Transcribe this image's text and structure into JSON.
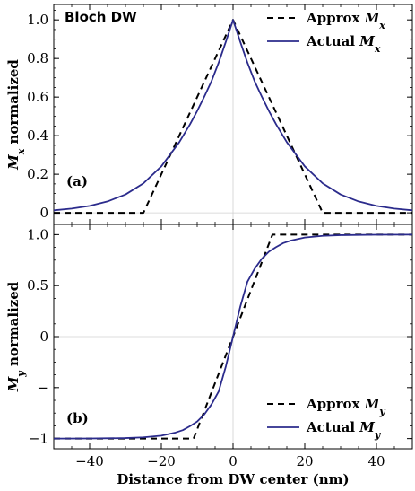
{
  "chart_data": [
    {
      "type": "line",
      "title": "Bloch DW",
      "panel_label": "(a)",
      "ylabel": "Mx normalized",
      "xlabel": "",
      "xlim": [
        -50,
        50
      ],
      "ylim": [
        -0.06,
        1.08
      ],
      "xticks": [
        -40,
        -20,
        0,
        20,
        40
      ],
      "yticks": [
        0,
        0.2,
        0.4,
        0.6,
        0.8,
        1.0
      ],
      "ytick_labels": [
        "0",
        "0.2",
        "0.4",
        "0.6",
        "0.8",
        "1.0"
      ],
      "show_x_tick_labels": false,
      "legend": {
        "placement": "top-right"
      },
      "series": [
        {
          "name": "Approx Mx",
          "style": "dashed",
          "color": "#000000",
          "x": [
            -50,
            -25,
            0,
            25,
            50
          ],
          "y": [
            0,
            0,
            1,
            0,
            0
          ]
        },
        {
          "name": "Actual Mx",
          "style": "solid",
          "color": "#2b2b8c",
          "x": [
            -50,
            -45,
            -40,
            -35,
            -30,
            -25,
            -20,
            -15,
            -12,
            -10,
            -8,
            -6,
            -4,
            -2,
            0,
            2,
            4,
            6,
            8,
            10,
            12,
            15,
            20,
            25,
            30,
            35,
            40,
            45,
            50
          ],
          "y": [
            0.013,
            0.022,
            0.036,
            0.059,
            0.095,
            0.153,
            0.241,
            0.366,
            0.459,
            0.528,
            0.603,
            0.683,
            0.779,
            0.887,
            1.0,
            0.887,
            0.779,
            0.683,
            0.603,
            0.528,
            0.459,
            0.366,
            0.241,
            0.153,
            0.095,
            0.059,
            0.036,
            0.022,
            0.013
          ]
        }
      ]
    },
    {
      "type": "line",
      "panel_label": "(b)",
      "ylabel": "My normalized",
      "xlabel": "Distance from DW center (nm)",
      "xlim": [
        -50,
        50
      ],
      "ylim": [
        -1.1,
        1.1
      ],
      "xticks": [
        -40,
        -20,
        0,
        20,
        40
      ],
      "xtick_labels": [
        "−40",
        "−20",
        "0",
        "20",
        "40"
      ],
      "yticks": [
        -1,
        -0.5,
        0,
        0.5,
        1.0
      ],
      "ytick_labels": [
        "−1",
        "−",
        "0",
        "0.5",
        "1.0"
      ],
      "legend": {
        "placement": "bottom-right"
      },
      "series": [
        {
          "name": "Approx My",
          "style": "dashed",
          "color": "#000000",
          "x": [
            -50,
            -11,
            11,
            50
          ],
          "y": [
            -1,
            -1,
            1,
            1
          ]
        },
        {
          "name": "Actual My",
          "style": "solid",
          "color": "#2b2b8c",
          "x": [
            -50,
            -40,
            -30,
            -25,
            -20,
            -16,
            -14,
            -12,
            -10,
            -8,
            -6,
            -4,
            -2,
            0,
            2,
            4,
            6,
            8,
            10,
            12,
            14,
            16,
            20,
            25,
            30,
            40,
            50
          ],
          "y": [
            -1.0,
            -0.999,
            -0.995,
            -0.988,
            -0.971,
            -0.94,
            -0.917,
            -0.878,
            -0.833,
            -0.762,
            -0.664,
            -0.537,
            -0.291,
            0.0,
            0.291,
            0.537,
            0.664,
            0.762,
            0.833,
            0.878,
            0.917,
            0.94,
            0.971,
            0.988,
            0.995,
            0.999,
            1.0
          ]
        }
      ]
    }
  ]
}
